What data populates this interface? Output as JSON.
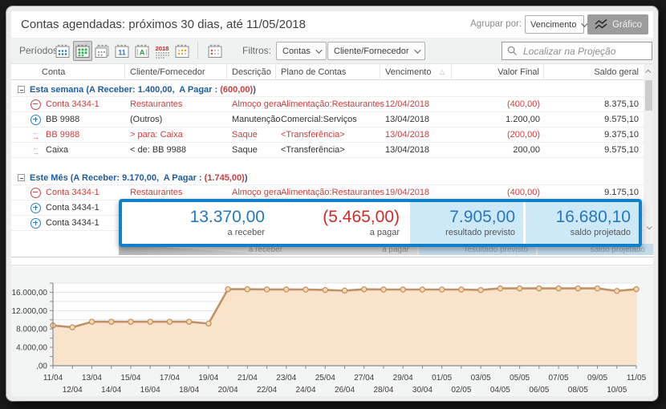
{
  "window": {
    "title": "Contas agendadas: próximos 30 dias, até 11/05/2018"
  },
  "header": {
    "agrupar_label": "Agrupar por:",
    "agrupar_value": "Vencimento",
    "grafico_label": "Gráfico"
  },
  "toolbar": {
    "periodos_label": "Períodos:",
    "period_icons": [
      "calendar-month-dots-blue",
      "calendar-weeks-green-selected",
      "calendar-stack",
      "calendar-fortnight-11",
      "calendar-year-A",
      "calendar-year-2018",
      "calendar-custom-orange",
      "calendar-overdue-red"
    ],
    "filtros_label": "Filtros:",
    "filter_contas": "Contas",
    "filter_cliente": "Cliente/Fornecedor",
    "search_placeholder": "Localizar na Projeção"
  },
  "table": {
    "columns": [
      "Conta",
      "Cliente/Fornecedor",
      "Descrição",
      "Plano de Contas",
      "Vencimento",
      "Valor Final",
      "Saldo geral"
    ],
    "groups": [
      {
        "label_prefix": "Esta semana (A Receber: 1.400,00,  A Pagar : ",
        "a_pagar_value": "(600,00)",
        "label_suffix": ")",
        "rows": [
          {
            "icon": "minus-circle",
            "tone": "red",
            "conta": "Conta 3434-1",
            "cliente": "Restaurantes",
            "descricao": "Almoço gera",
            "plano": "Alimentação:Restaurantes",
            "vencimento": "12/04/2018",
            "valor": "(400,00)",
            "saldo": "8.375,10"
          },
          {
            "icon": "plus-circle",
            "tone": "normal",
            "conta": "BB 9988",
            "cliente": "(Outros)",
            "descricao": "Manutenção",
            "plano": "Comercial:Serviços",
            "vencimento": "13/04/2018",
            "valor": "1.200,00",
            "saldo": "9.575,10"
          },
          {
            "icon": "transfer-out",
            "tone": "red",
            "conta": "BB 9988",
            "cliente": "> para: Caixa",
            "descricao": "Saque",
            "plano": "<Transferência>",
            "vencimento": "13/04/2018",
            "valor": "(200,00)",
            "saldo": "9.375,10"
          },
          {
            "icon": "transfer-in",
            "tone": "normal",
            "conta": "Caixa",
            "cliente": "< de: BB 9988",
            "descricao": "Saque",
            "plano": "<Transferência>",
            "vencimento": "13/04/2018",
            "valor": "200,00",
            "saldo": "9.575,10"
          }
        ]
      },
      {
        "label_prefix": "Este Mês (A Receber: 9.170,00,  A Pagar : ",
        "a_pagar_value": "(1.745,00)",
        "label_suffix": ")",
        "rows": [
          {
            "icon": "minus-circle",
            "tone": "red",
            "conta": "Conta 3434-1",
            "cliente": "Restaurantes",
            "descricao": "Almoço gera",
            "plano": "Alimentação:Restaurantes",
            "vencimento": "19/04/2018",
            "valor": "(400,00)",
            "saldo": "9.175,10"
          },
          {
            "icon": "plus-circle",
            "tone": "normal",
            "conta": "Conta 3434-1",
            "cliente": "",
            "descricao": "",
            "plano": "",
            "vencimento": "",
            "valor": "",
            "saldo": ""
          },
          {
            "icon": "plus-circle",
            "tone": "normal",
            "conta": "Conta 3434-1",
            "cliente": "",
            "descricao": "",
            "plano": "",
            "vencimento": "",
            "valor": "",
            "saldo": ""
          }
        ]
      }
    ]
  },
  "summary": {
    "cells": [
      {
        "value": "13.370,00",
        "label": "a receber",
        "value_color": "blue",
        "background": "white"
      },
      {
        "value": "(5.465,00)",
        "label": "a pagar",
        "value_color": "red",
        "background": "white"
      },
      {
        "value": "7.905,00",
        "label": "resultado previsto",
        "value_color": "blue",
        "background": "lightblue"
      },
      {
        "value": "16.680,10",
        "label": "saldo projetado",
        "value_color": "blue",
        "background": "lightblue"
      }
    ]
  },
  "chart_data": {
    "type": "area",
    "title": "",
    "xlabel": "",
    "ylabel": "",
    "x": [
      "11/04",
      "12/04",
      "13/04",
      "14/04",
      "15/04",
      "16/04",
      "17/04",
      "18/04",
      "19/04",
      "20/04",
      "21/04",
      "22/04",
      "23/04",
      "24/04",
      "25/04",
      "26/04",
      "27/04",
      "28/04",
      "29/04",
      "30/04",
      "01/05",
      "02/05",
      "03/05",
      "04/05",
      "05/05",
      "06/05",
      "07/05",
      "08/05",
      "09/05",
      "10/05",
      "11/05"
    ],
    "values": [
      8775,
      8375,
      9575,
      9575,
      9575,
      9575,
      9575,
      9575,
      9175,
      16675,
      16675,
      16625,
      16625,
      16600,
      16500,
      16350,
      16650,
      16600,
      16600,
      16600,
      16600,
      16600,
      16500,
      16850,
      16850,
      16850,
      16850,
      16850,
      16850,
      16280,
      16680
    ],
    "ylim": [
      0,
      18000
    ],
    "grid_step": 2000,
    "ytick_values": [
      0,
      4000,
      8000,
      12000,
      16000
    ],
    "ytick_labels": [
      ",00",
      "4.000,00",
      "8.000,00",
      "12.000,00",
      "16.000,00"
    ],
    "legend": null,
    "grid": true,
    "colors": {
      "line": "#bf9268",
      "fill": "#fae3cb",
      "marker_fill": "#fcd9a8",
      "marker_stroke": "#bf9268",
      "grid": "#e4e4e4",
      "axis": "#8a8a8a",
      "text": "#3c3c3c"
    }
  },
  "colors": {
    "accent_blue": "#2577be",
    "negative_red": "#cf2b2b",
    "group_blue": "#1e5c9e",
    "row_red": "#c93f3f",
    "callout_border": "#1180cb",
    "light_blue_bg": "#cde9f8"
  }
}
